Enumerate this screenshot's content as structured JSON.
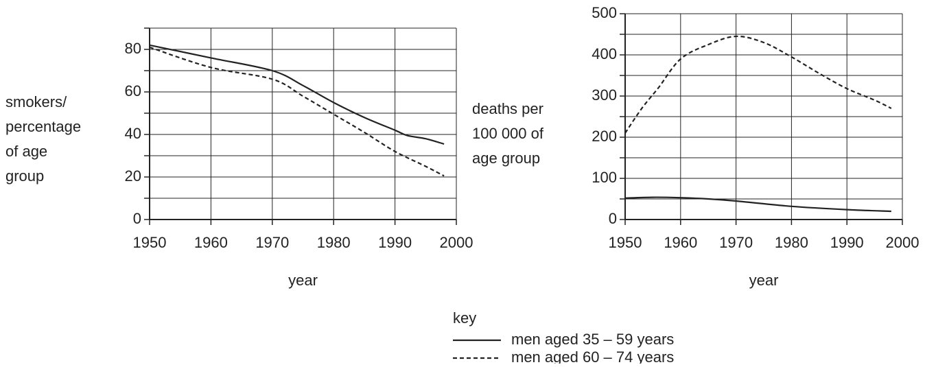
{
  "chart_data": [
    {
      "type": "line",
      "xlabel": "year",
      "ylabel": [
        "smokers/",
        "percentage",
        "of age",
        "group"
      ],
      "xlim": [
        1950,
        2000
      ],
      "xticks": [
        1950,
        1960,
        1970,
        1980,
        1990,
        2000
      ],
      "ylim": [
        0,
        90
      ],
      "yticks": [
        0,
        20,
        40,
        60,
        80
      ],
      "minor_yticks": [
        10,
        30,
        50,
        70,
        90
      ],
      "grid": true,
      "series": [
        {
          "name": "men aged 35 – 59 years",
          "color": "#222222",
          "dash": "none",
          "x": [
            1950,
            1960,
            1970,
            1975,
            1980,
            1985,
            1990,
            1992,
            1995,
            1998
          ],
          "values": [
            82,
            76,
            70,
            63,
            55,
            48,
            42,
            39.5,
            38,
            35.5
          ]
        },
        {
          "name": "men aged 60 – 74 years",
          "color": "#222222",
          "dash": "6 4",
          "x": [
            1950,
            1960,
            1970,
            1975,
            1980,
            1985,
            1990,
            1995,
            1998
          ],
          "values": [
            81,
            71.5,
            66,
            58,
            49.5,
            41,
            32,
            25,
            20.5
          ]
        }
      ]
    },
    {
      "type": "line",
      "xlabel": "year",
      "ylabel": [
        "deaths per",
        "100 000 of",
        "age group"
      ],
      "xlim": [
        1950,
        2000
      ],
      "xticks": [
        1950,
        1960,
        1970,
        1980,
        1990,
        2000
      ],
      "ylim": [
        0,
        500
      ],
      "yticks": [
        0,
        100,
        200,
        300,
        400,
        500
      ],
      "minor_yticks": [
        50,
        150,
        250,
        350,
        450
      ],
      "grid": true,
      "series": [
        {
          "color": "#222222",
          "dash": "none",
          "x": [
            1950,
            1955,
            1960,
            1965,
            1970,
            1980,
            1990,
            1998
          ],
          "values": [
            52,
            54,
            53,
            50,
            45,
            32,
            24,
            20
          ]
        },
        {
          "color": "#222222",
          "dash": "6 4",
          "x": [
            1950,
            1953,
            1956,
            1960,
            1965,
            1970,
            1975,
            1980,
            1985,
            1990,
            1995,
            1998
          ],
          "values": [
            210,
            270,
            320,
            390,
            425,
            445,
            430,
            395,
            355,
            318,
            290,
            270
          ]
        }
      ]
    }
  ],
  "key": {
    "title": "key"
  }
}
